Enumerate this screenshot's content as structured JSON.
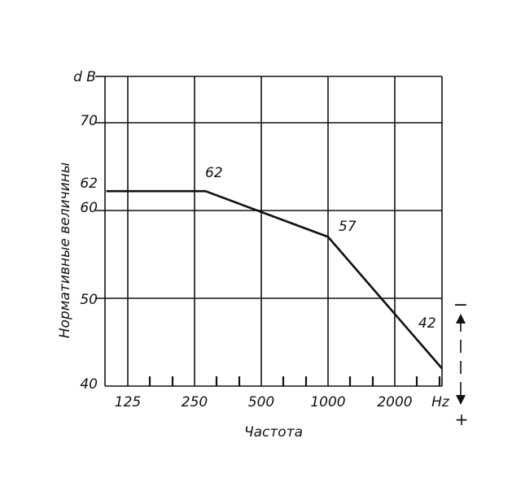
{
  "chart_data": {
    "type": "line",
    "y_unit": "d B",
    "x_unit": "Hz",
    "xlabel": "Частота",
    "ylabel": "Нормативные величины",
    "x_ticks": [
      "125",
      "250",
      "500",
      "1000",
      "2000"
    ],
    "y_ticks": [
      "40",
      "50",
      "60",
      "70"
    ],
    "y_tick_extra": "62",
    "ylim": [
      40,
      72
    ],
    "series": [
      {
        "x": [
          100,
          280,
          1000,
          5000
        ],
        "y": [
          62.2,
          62.2,
          57.0,
          42.0
        ]
      }
    ],
    "point_labels": [
      {
        "x": 280,
        "y": 62.2,
        "text": "62"
      },
      {
        "x": 1000,
        "y": 57.0,
        "text": "57"
      },
      {
        "x": 5000,
        "y": 42.0,
        "text": "42"
      }
    ],
    "tolerance_marks": {
      "minus": "−",
      "plus": "+"
    },
    "grid": true
  }
}
